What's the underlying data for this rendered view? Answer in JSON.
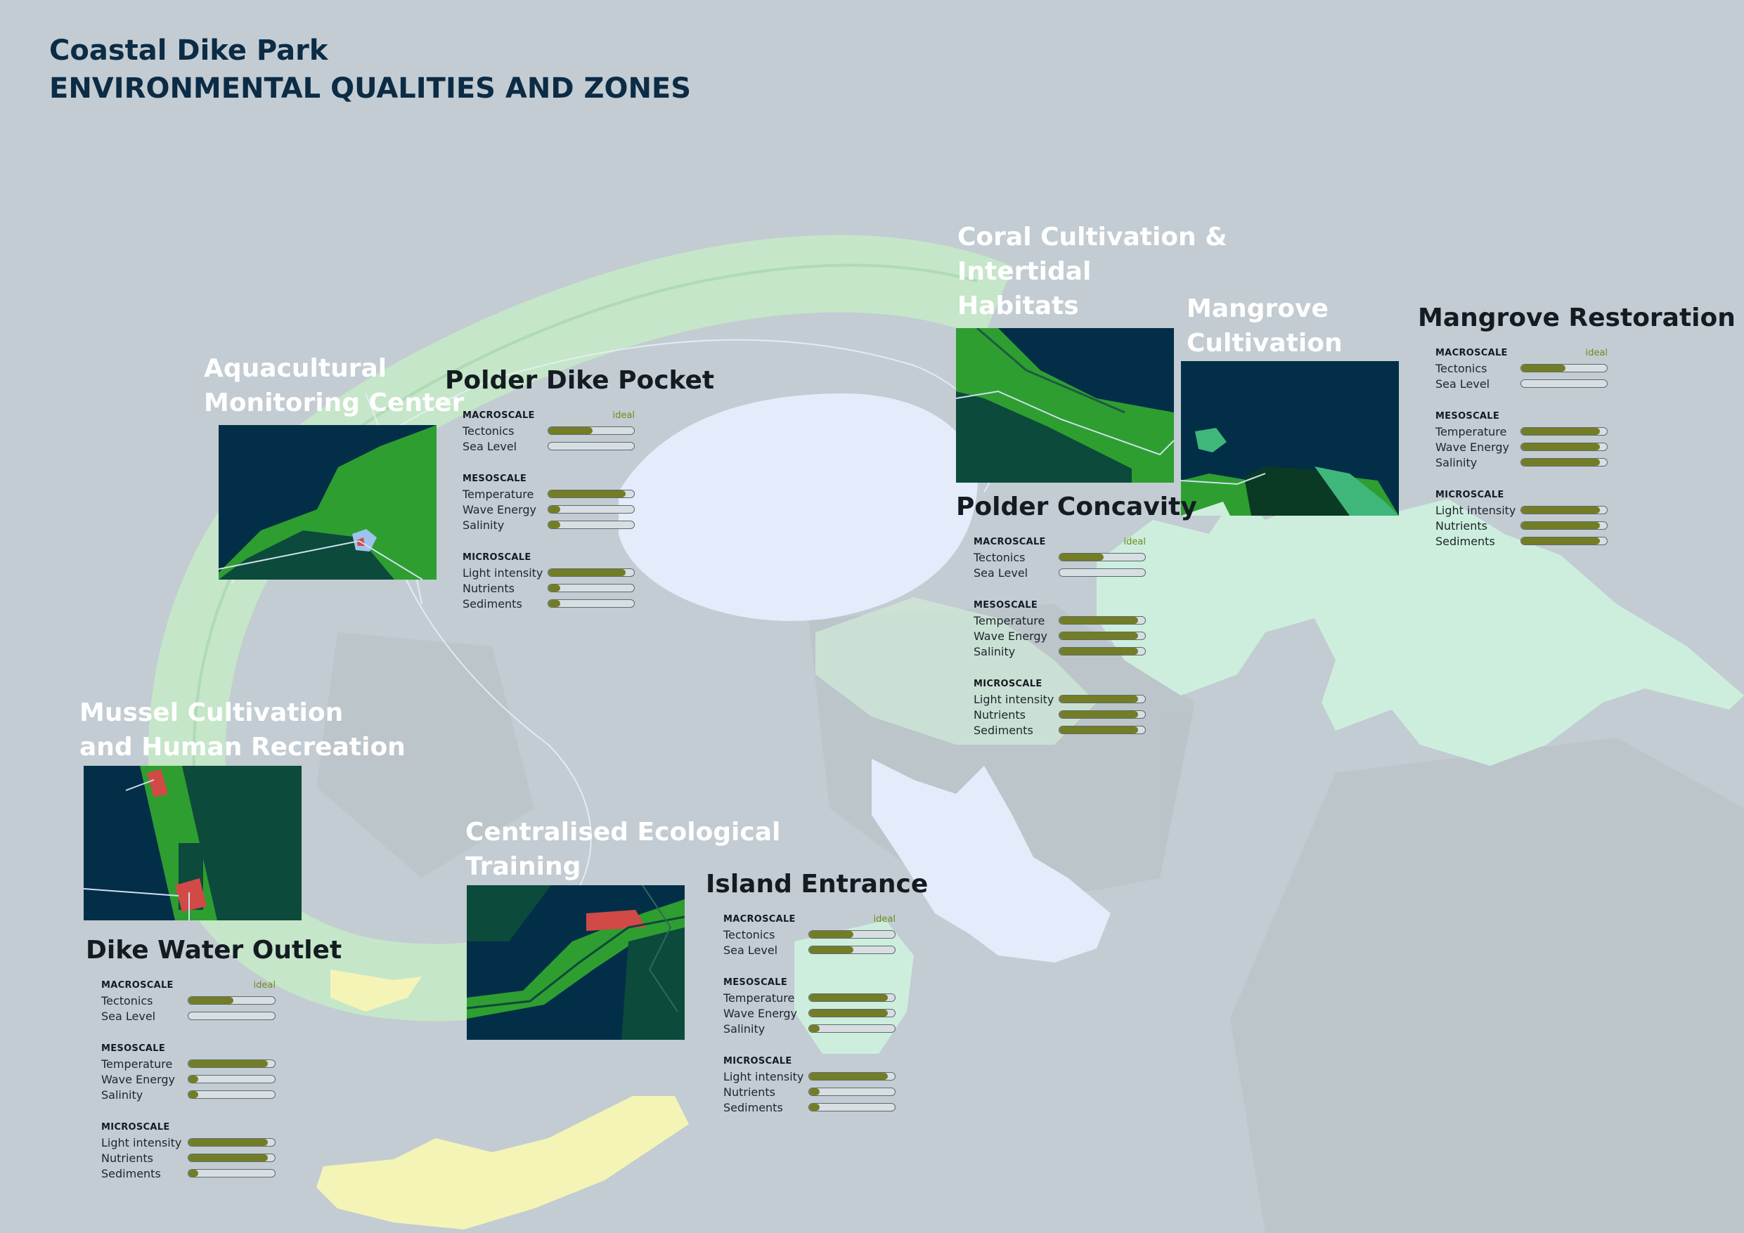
{
  "title": {
    "line1": "Coastal Dike Park",
    "line2": "ENVIRONMENTAL QUALITIES AND ZONES"
  },
  "legend": {
    "macro": "MACROSCALE",
    "meso": "MESOSCALE",
    "micro": "MICROSCALE",
    "ideal": "ideal"
  },
  "colors": {
    "sea": "#c2ccd2",
    "lagoon": "#e4ecfb",
    "mint": "#cdeedd",
    "park_ring": "#c5e6c8",
    "sand": "#f4f4b6",
    "bright_green": "#2e9e30",
    "dark_green": "#0c4a3c",
    "navy": "#032e48",
    "bar_fill": "#737d25",
    "red": "#d14a45"
  },
  "zones": [
    {
      "id": "aquacultural",
      "lines": [
        "Aquacultural",
        "Monitoring Center"
      ]
    },
    {
      "id": "mussel",
      "lines": [
        "Mussel Cultivation",
        "and Human Recreation"
      ]
    },
    {
      "id": "coral",
      "lines": [
        "Coral Cultivation &",
        "Intertidal",
        "Habitats"
      ]
    },
    {
      "id": "mangrove-cultivation",
      "lines": [
        "Mangrove",
        "Cultivation"
      ]
    },
    {
      "id": "centralised",
      "lines": [
        "Centralised Ecological",
        "Training"
      ]
    }
  ],
  "panels": [
    {
      "title": "Polder Dike Pocket",
      "macro": [
        {
          "label": "Tectonics",
          "value": 0.52
        },
        {
          "label": "Sea Level",
          "value": 0
        }
      ],
      "meso": [
        {
          "label": "Temperature",
          "value": 0.9
        },
        {
          "label": "Wave Energy",
          "value": 0.14
        },
        {
          "label": "Salinity",
          "value": 0.14
        }
      ],
      "micro": [
        {
          "label": "Light intensity",
          "value": 0.9
        },
        {
          "label": "Nutrients",
          "value": 0.14
        },
        {
          "label": "Sediments",
          "value": 0.14
        }
      ]
    },
    {
      "title": "Polder Concavity",
      "macro": [
        {
          "label": "Tectonics",
          "value": 0.52
        },
        {
          "label": "Sea Level",
          "value": 0
        }
      ],
      "meso": [
        {
          "label": "Temperature",
          "value": 0.92
        },
        {
          "label": "Wave Energy",
          "value": 0.92
        },
        {
          "label": "Salinity",
          "value": 0.92
        }
      ],
      "micro": [
        {
          "label": "Light intensity",
          "value": 0.92
        },
        {
          "label": "Nutrients",
          "value": 0.92
        },
        {
          "label": "Sediments",
          "value": 0.92
        }
      ]
    },
    {
      "title": "Mangrove Restoration",
      "macro": [
        {
          "label": "Tectonics",
          "value": 0.52
        },
        {
          "label": "Sea Level",
          "value": 0
        }
      ],
      "meso": [
        {
          "label": "Temperature",
          "value": 0.92
        },
        {
          "label": "Wave Energy",
          "value": 0.92
        },
        {
          "label": "Salinity",
          "value": 0.92
        }
      ],
      "micro": [
        {
          "label": "Light intensity",
          "value": 0.92
        },
        {
          "label": "Nutrients",
          "value": 0.92
        },
        {
          "label": "Sediments",
          "value": 0.92
        }
      ]
    },
    {
      "title": "Dike Water Outlet",
      "macro": [
        {
          "label": "Tectonics",
          "value": 0.52
        },
        {
          "label": "Sea Level",
          "value": 0
        }
      ],
      "meso": [
        {
          "label": "Temperature",
          "value": 0.92
        },
        {
          "label": "Wave Energy",
          "value": 0.12
        },
        {
          "label": "Salinity",
          "value": 0.12
        }
      ],
      "micro": [
        {
          "label": "Light intensity",
          "value": 0.92
        },
        {
          "label": "Nutrients",
          "value": 0.92
        },
        {
          "label": "Sediments",
          "value": 0.12
        }
      ]
    },
    {
      "title": "Island Entrance",
      "macro": [
        {
          "label": "Tectonics",
          "value": 0.52
        },
        {
          "label": "Sea Level",
          "value": 0.52
        }
      ],
      "meso": [
        {
          "label": "Temperature",
          "value": 0.92
        },
        {
          "label": "Wave Energy",
          "value": 0.92
        },
        {
          "label": "Salinity",
          "value": 0.12
        }
      ],
      "micro": [
        {
          "label": "Light intensity",
          "value": 0.92
        },
        {
          "label": "Nutrients",
          "value": 0.12
        },
        {
          "label": "Sediments",
          "value": 0.12
        }
      ]
    }
  ]
}
